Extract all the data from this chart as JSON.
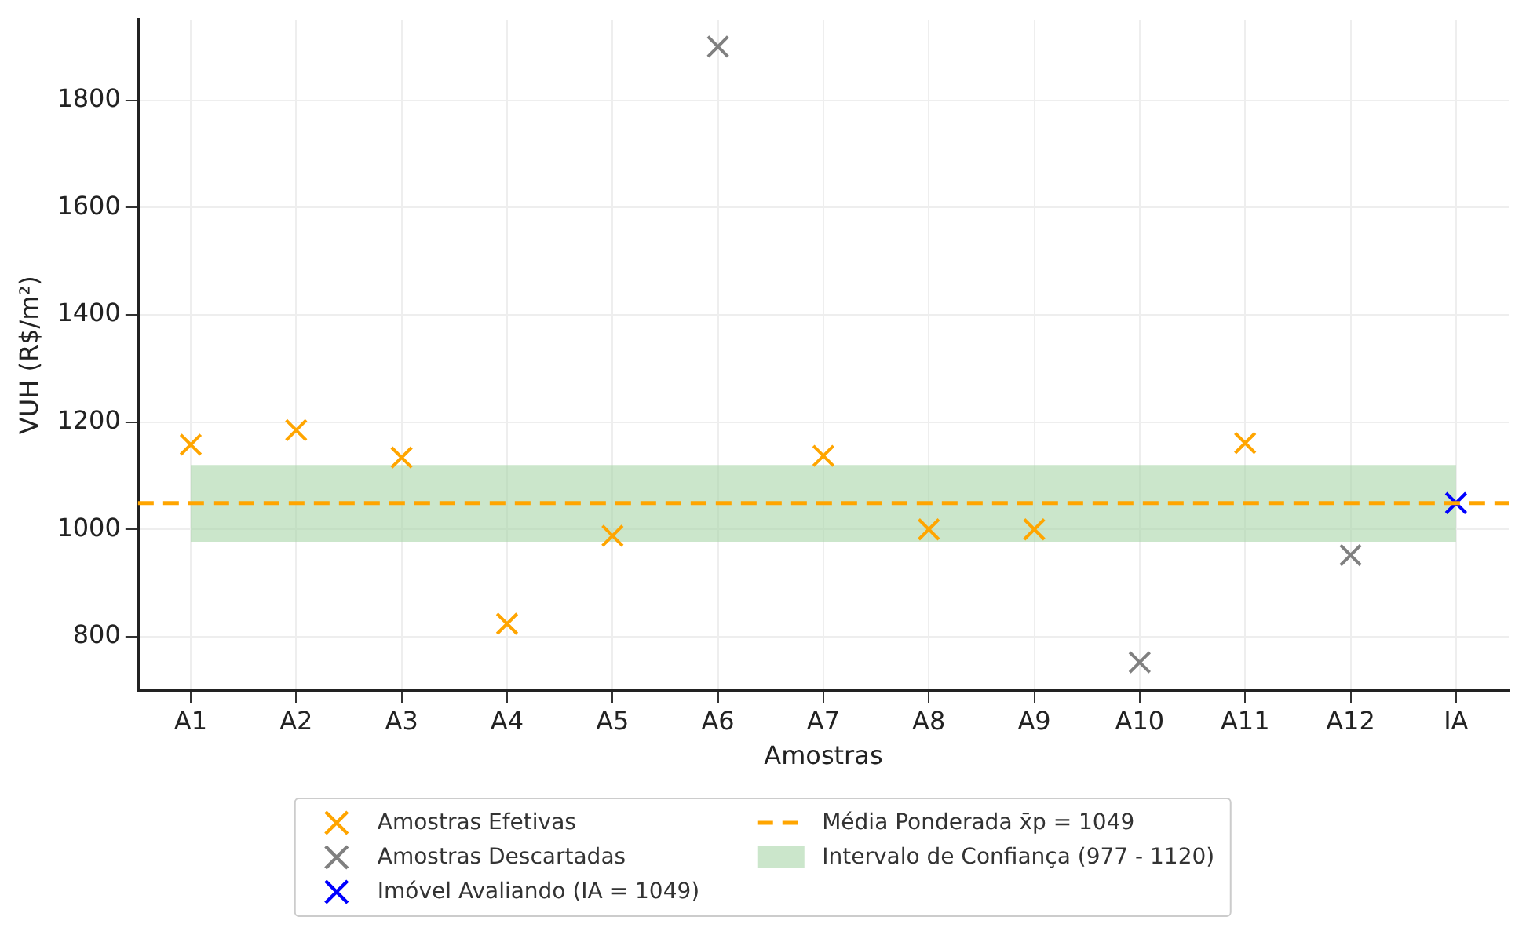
{
  "chart_data": {
    "type": "scatter",
    "xlabel": "Amostras",
    "ylabel": "VUH (R$/m²)",
    "categories": [
      "A1",
      "A2",
      "A3",
      "A4",
      "A5",
      "A6",
      "A7",
      "A8",
      "A9",
      "A10",
      "A11",
      "A12",
      "IA"
    ],
    "series": [
      {
        "name": "Amostras Efetivas",
        "color": "#ffa500",
        "values": [
          1158,
          1185,
          1134,
          824,
          988,
          null,
          1137,
          1000,
          1000,
          null,
          1161,
          null,
          null
        ]
      },
      {
        "name": "Amostras Descartadas",
        "color": "#808080",
        "values": [
          null,
          null,
          null,
          null,
          null,
          1900,
          null,
          null,
          null,
          752,
          null,
          952,
          null
        ]
      },
      {
        "name": "Imóvel Avaliando (IA = 1049)",
        "color": "#0000ff",
        "values": [
          null,
          null,
          null,
          null,
          null,
          null,
          null,
          null,
          null,
          null,
          null,
          null,
          1049
        ]
      }
    ],
    "ref_lines": [
      {
        "axis": "y",
        "value": 1049,
        "label": "Média Ponderada x̄p = 1049",
        "color": "#ffa500",
        "line_style": "dashed"
      }
    ],
    "bands": [
      {
        "axis": "y",
        "from": 977,
        "to": 1120,
        "label": "Intervalo de Confiança (977 - 1120)",
        "color": "#a8d5a8"
      }
    ],
    "ylim": [
      700,
      1950
    ],
    "yticks": [
      800,
      1000,
      1200,
      1400,
      1600,
      1800
    ],
    "grid": true,
    "legend": "bottom",
    "marker": "cross"
  }
}
